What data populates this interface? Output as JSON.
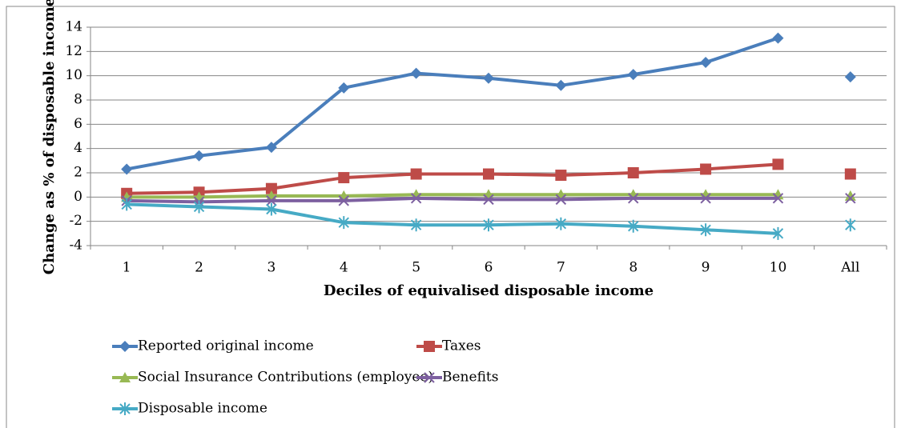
{
  "chart_data": {
    "type": "line",
    "x_label": "Deciles of equivalised disposable income",
    "y_label": "Change as % of disposable income",
    "categories": [
      "1",
      "2",
      "3",
      "4",
      "5",
      "6",
      "7",
      "8",
      "9",
      "10",
      "All"
    ],
    "separate_last": true,
    "ylim": [
      -4,
      14
    ],
    "yticks": [
      -4,
      -2,
      0,
      2,
      4,
      6,
      8,
      10,
      12,
      14
    ],
    "grid": true,
    "series": [
      {
        "name": "Reported original income",
        "color": "#4a7ebb",
        "marker": "diamond",
        "values": [
          2.3,
          3.4,
          4.1,
          9.0,
          10.2,
          9.8,
          9.2,
          10.1,
          11.1,
          13.1,
          9.9
        ]
      },
      {
        "name": "Taxes",
        "color": "#be4b48",
        "marker": "square",
        "values": [
          0.3,
          0.4,
          0.7,
          1.6,
          1.9,
          1.9,
          1.8,
          2.0,
          2.3,
          2.7,
          1.9
        ]
      },
      {
        "name": "Social Insurance Contributions (employee)",
        "color": "#98b954",
        "marker": "triangle",
        "values": [
          0.0,
          0.0,
          0.1,
          0.1,
          0.2,
          0.2,
          0.2,
          0.2,
          0.2,
          0.2,
          0.1
        ]
      },
      {
        "name": "Benefits",
        "color": "#7d60a0",
        "marker": "x",
        "values": [
          -0.3,
          -0.4,
          -0.3,
          -0.3,
          -0.1,
          -0.2,
          -0.2,
          -0.1,
          -0.1,
          -0.1,
          -0.1
        ]
      },
      {
        "name": "Disposable income",
        "color": "#46aac5",
        "marker": "star",
        "values": [
          -0.6,
          -0.8,
          -1.0,
          -2.1,
          -2.3,
          -2.3,
          -2.2,
          -2.4,
          -2.7,
          -3.0,
          -2.3
        ]
      }
    ]
  }
}
